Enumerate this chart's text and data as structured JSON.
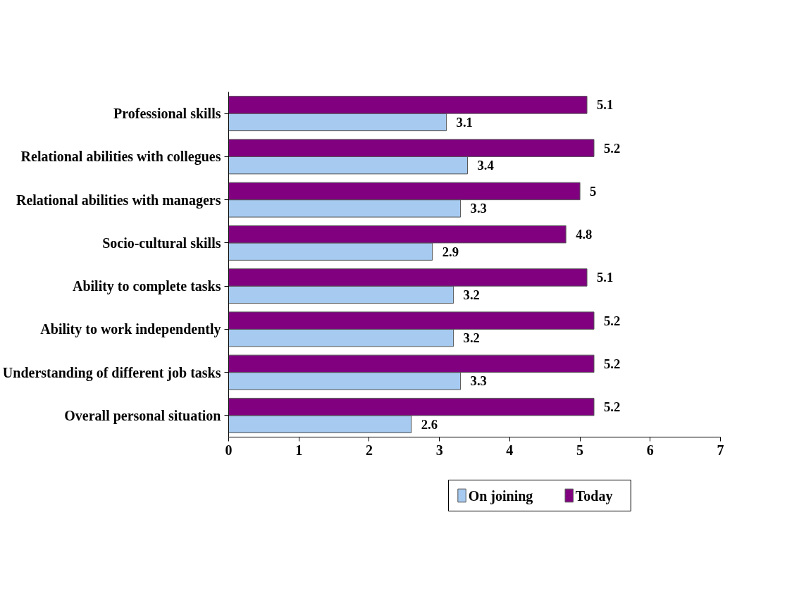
{
  "chart_data": {
    "type": "bar",
    "orientation": "horizontal",
    "categories": [
      "Professional skills",
      "Relational abilities with collegues",
      "Relational abilities with managers",
      "Socio-cultural skills",
      "Ability to complete tasks",
      "Ability to work independently",
      "Understanding of different job tasks",
      "Overall personal situation"
    ],
    "series": [
      {
        "name": "On joining",
        "color": "#a6caf0",
        "values": [
          3.1,
          3.4,
          3.3,
          2.9,
          3.2,
          3.2,
          3.3,
          2.6
        ]
      },
      {
        "name": "Today",
        "color": "#800080",
        "values": [
          5.1,
          5.2,
          5,
          4.8,
          5.1,
          5.2,
          5.2,
          5.2
        ]
      }
    ],
    "xlim": [
      0,
      7
    ],
    "xticks": [
      0,
      1,
      2,
      3,
      4,
      5,
      6,
      7
    ],
    "grid": false,
    "legend": "bottom",
    "data_labels": true
  }
}
